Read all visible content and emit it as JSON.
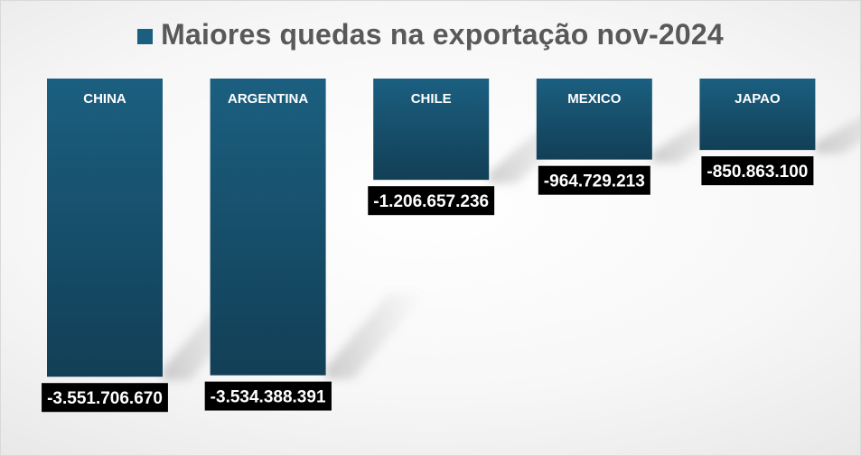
{
  "chart_data": {
    "type": "bar",
    "orientation": "vertical",
    "legend": "top",
    "grid": false,
    "series": [
      {
        "name": "Maiores quedas na exportação nov-2024",
        "values": [
          -3551706670,
          -3534388391,
          -1206657236,
          -964729213,
          -850863100
        ]
      }
    ],
    "categories": [
      "CHINA",
      "ARGENTINA",
      "CHILE",
      "MEXICO",
      "JAPAO"
    ],
    "value_labels": [
      "-3.551.706.670",
      "-3.534.388.391",
      "-1.206.657.236",
      "-964.729.213",
      "-850.863.100"
    ],
    "ylim": [
      -3700000000,
      0
    ],
    "colors": {
      "bar_top": "#1b5f80",
      "bar_bottom": "#123f56",
      "label_bg": "#000000",
      "label_text": "#ffffff",
      "category_text": "#ffffff"
    }
  }
}
